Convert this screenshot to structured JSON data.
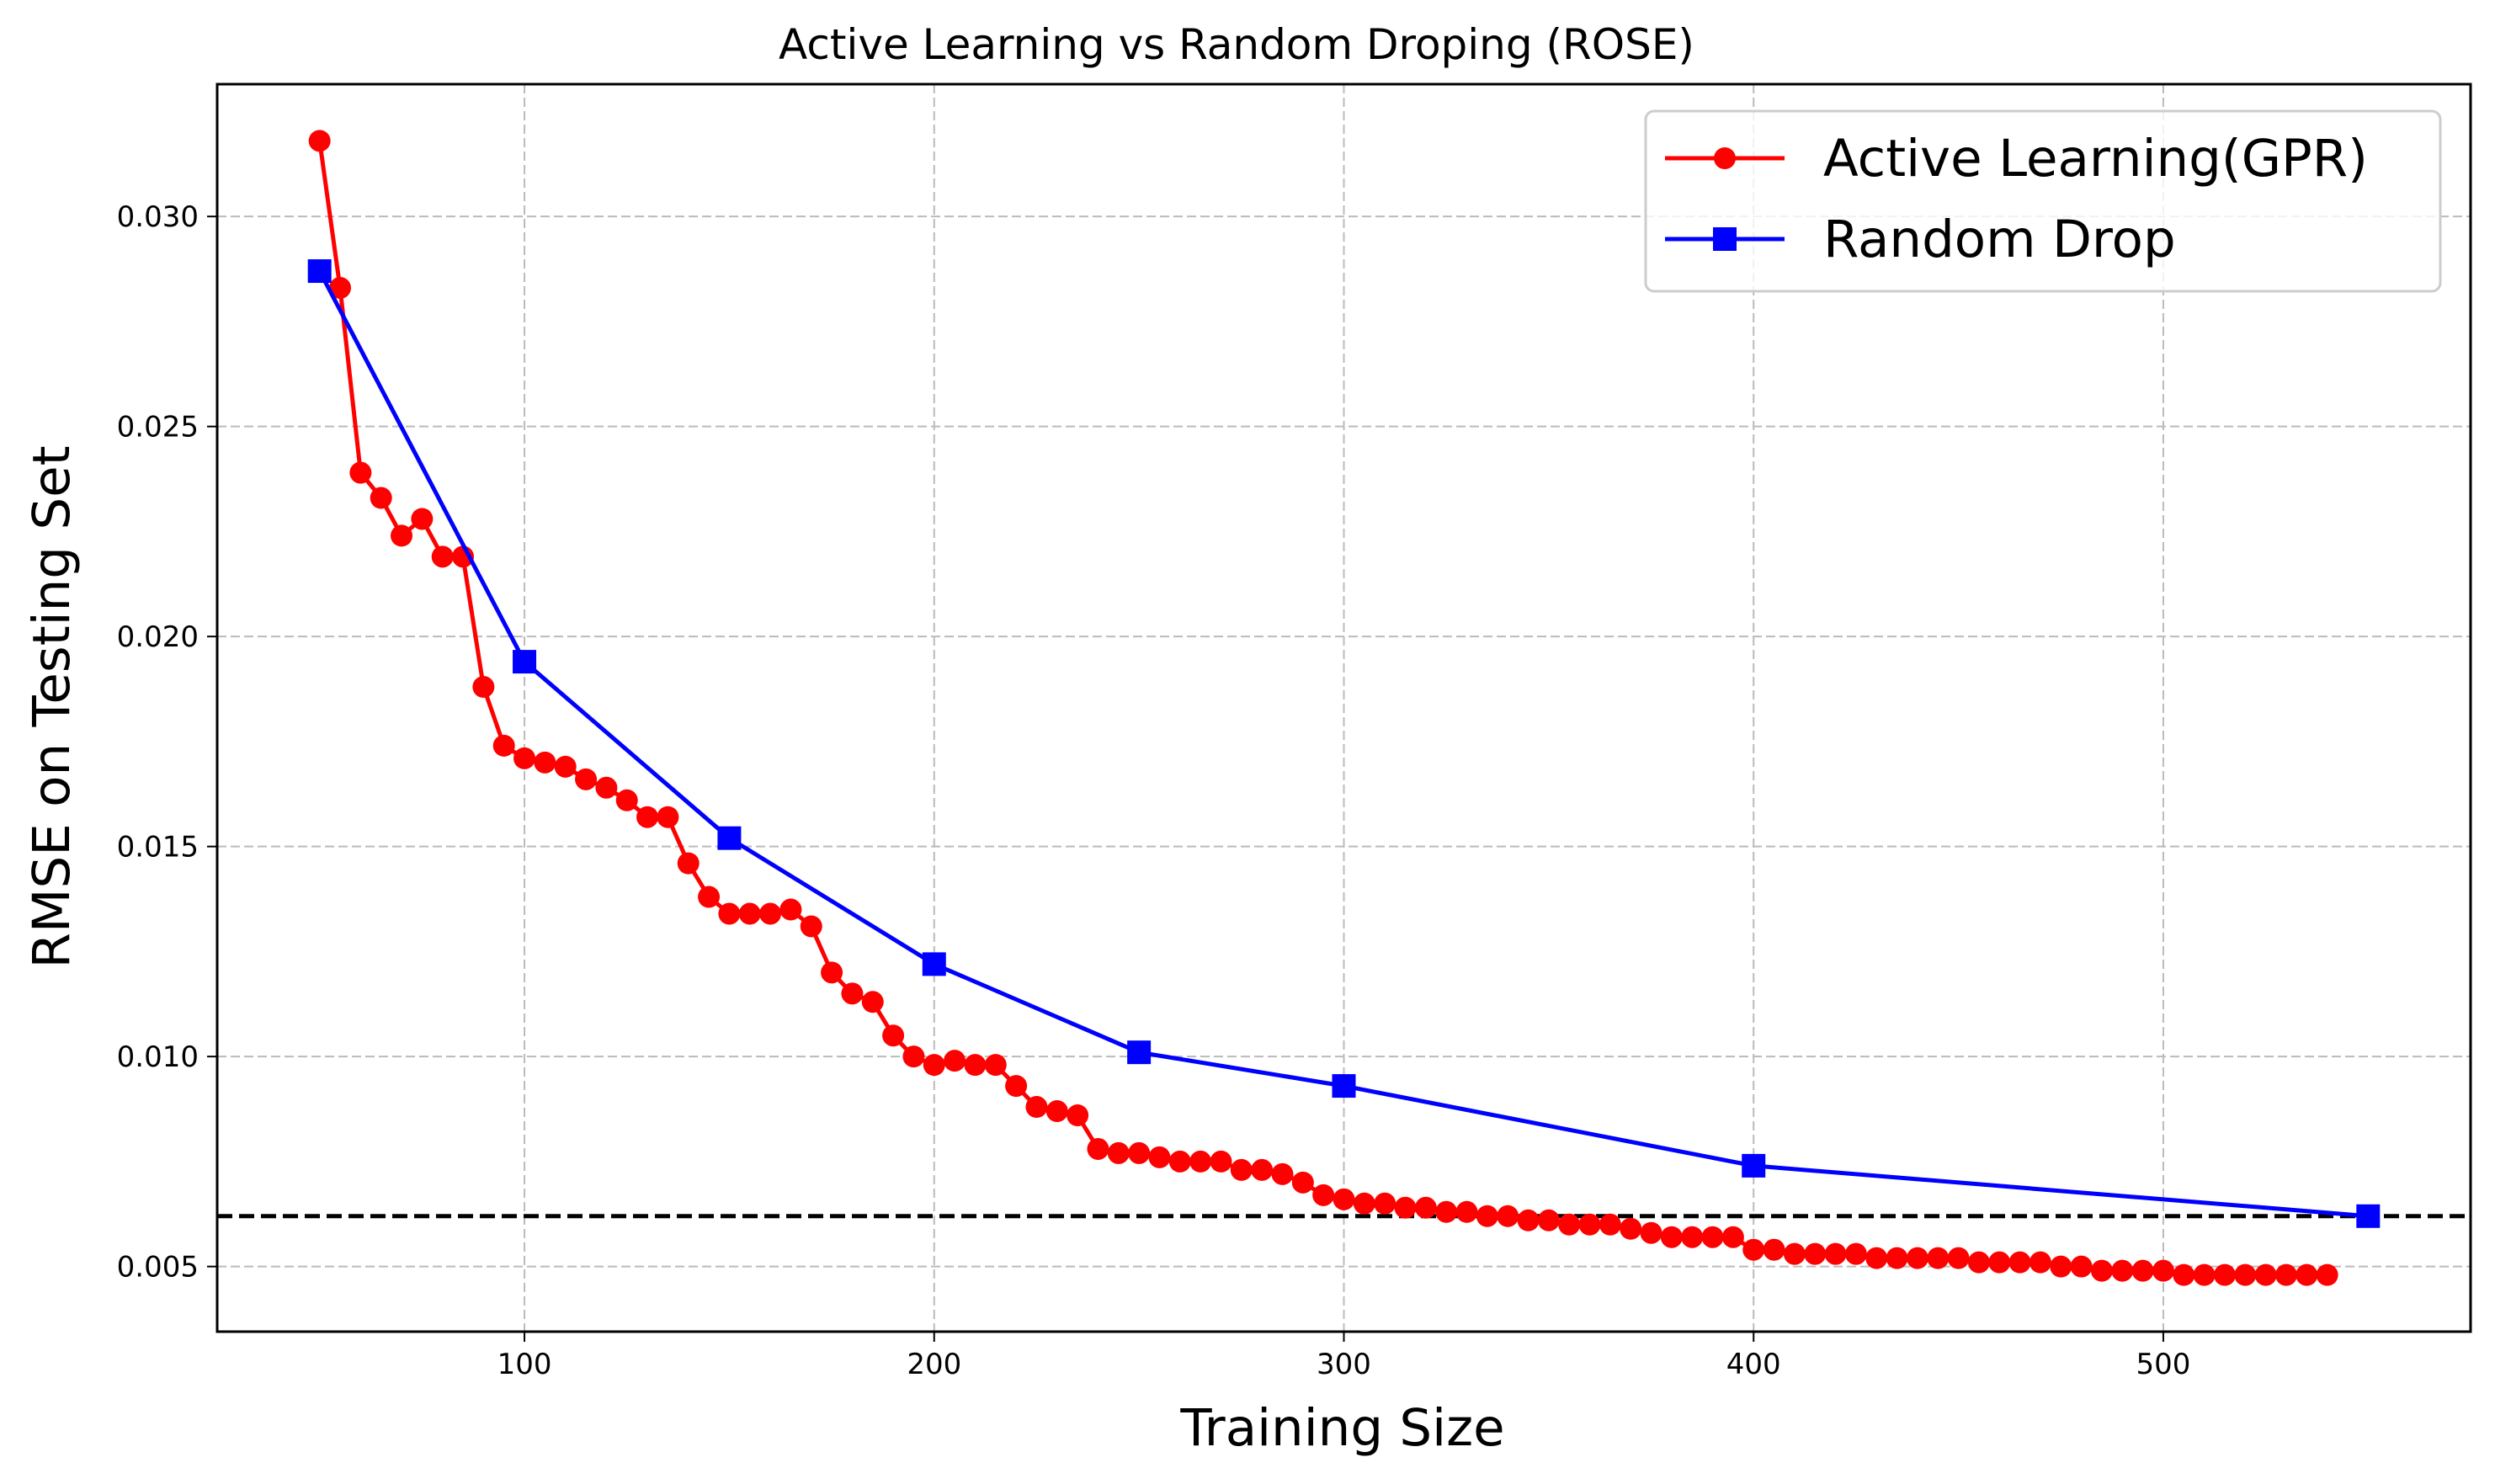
{
  "chart_data": {
    "type": "line",
    "title": "Active Learning vs Random Droping (ROSE)",
    "xlabel": "Training Size",
    "ylabel": "RMSE on Testing Set",
    "xlim": [
      25,
      575
    ],
    "ylim": [
      0.00345,
      0.03315
    ],
    "xticks": [
      100,
      200,
      300,
      400,
      500
    ],
    "xtick_labels": [
      "100",
      "200",
      "300",
      "400",
      "500"
    ],
    "yticks": [
      0.005,
      0.01,
      0.015,
      0.02,
      0.025,
      0.03
    ],
    "ytick_labels": [
      "0.005",
      "0.010",
      "0.015",
      "0.020",
      "0.025",
      "0.030"
    ],
    "grid": true,
    "legend_position": "upper right",
    "reference_line": {
      "y": 0.0062,
      "style": "dashed",
      "color": "#000000"
    },
    "series": [
      {
        "name": "Active Learning(GPR)",
        "color": "#ff0000",
        "marker": "circle",
        "x": [
          50,
          55,
          60,
          65,
          70,
          75,
          80,
          85,
          90,
          95,
          100,
          105,
          110,
          115,
          120,
          125,
          130,
          135,
          140,
          145,
          150,
          155,
          160,
          165,
          170,
          175,
          180,
          185,
          190,
          195,
          200,
          205,
          210,
          215,
          220,
          225,
          230,
          235,
          240,
          245,
          250,
          255,
          260,
          265,
          270,
          275,
          280,
          285,
          290,
          295,
          300,
          305,
          310,
          315,
          320,
          325,
          330,
          335,
          340,
          345,
          350,
          355,
          360,
          365,
          370,
          375,
          380,
          385,
          390,
          395,
          400,
          405,
          410,
          415,
          420,
          425,
          430,
          435,
          440,
          445,
          450,
          455,
          460,
          465,
          470,
          475,
          480,
          485,
          490,
          495,
          500,
          505,
          510,
          515,
          520,
          525,
          530,
          535,
          540
        ],
        "y": [
          0.0318,
          0.0283,
          0.0239,
          0.0233,
          0.0224,
          0.0228,
          0.0219,
          0.0219,
          0.0188,
          0.0174,
          0.0171,
          0.017,
          0.0169,
          0.0166,
          0.0164,
          0.0161,
          0.0157,
          0.0157,
          0.0146,
          0.0138,
          0.0134,
          0.0134,
          0.0134,
          0.0135,
          0.0131,
          0.012,
          0.0115,
          0.0113,
          0.0105,
          0.01,
          0.0098,
          0.0099,
          0.0098,
          0.0098,
          0.0093,
          0.0088,
          0.0087,
          0.0086,
          0.0078,
          0.0077,
          0.0077,
          0.0076,
          0.0075,
          0.0075,
          0.0075,
          0.0073,
          0.0073,
          0.0072,
          0.007,
          0.0067,
          0.0066,
          0.0065,
          0.0065,
          0.0064,
          0.0064,
          0.0063,
          0.0063,
          0.0062,
          0.0062,
          0.0061,
          0.0061,
          0.006,
          0.006,
          0.006,
          0.0059,
          0.0058,
          0.0057,
          0.0057,
          0.0057,
          0.0057,
          0.0054,
          0.0054,
          0.0053,
          0.0053,
          0.0053,
          0.0053,
          0.0052,
          0.0052,
          0.0052,
          0.0052,
          0.0052,
          0.0051,
          0.0051,
          0.0051,
          0.0051,
          0.005,
          0.005,
          0.0049,
          0.0049,
          0.0049,
          0.0049,
          0.0048,
          0.0048,
          0.0048,
          0.0048,
          0.0048,
          0.0048,
          0.0048,
          0.0048
        ]
      },
      {
        "name": "Random Drop",
        "color": "#0000ff",
        "marker": "square",
        "x": [
          50,
          100,
          150,
          200,
          250,
          300,
          400,
          550
        ],
        "y": [
          0.0287,
          0.0194,
          0.0152,
          0.0122,
          0.0101,
          0.0093,
          0.0074,
          0.0062
        ]
      }
    ]
  }
}
